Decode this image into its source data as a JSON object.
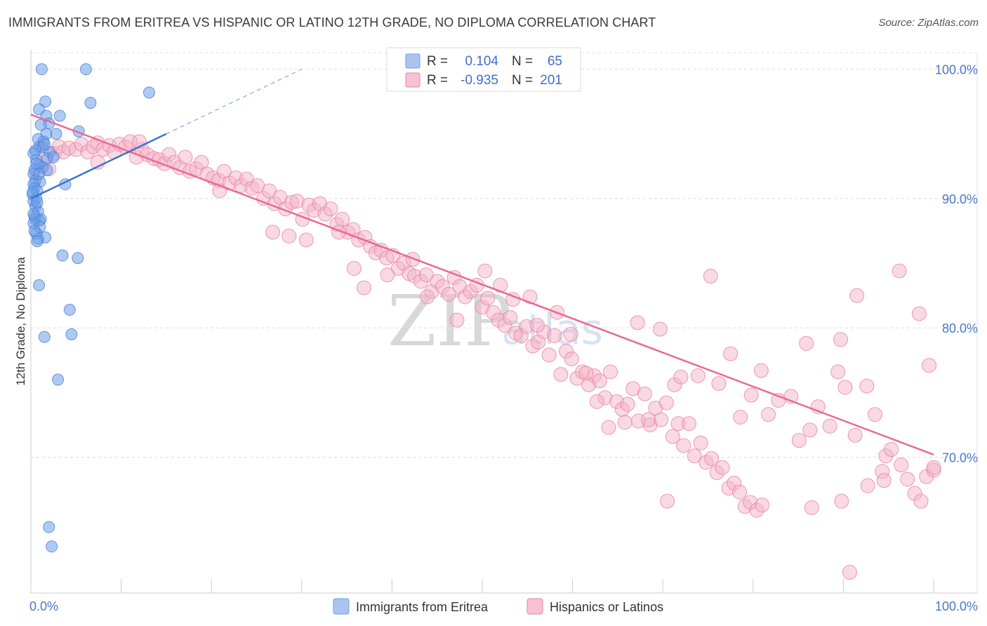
{
  "title": "IMMIGRANTS FROM ERITREA VS HISPANIC OR LATINO 12TH GRADE, NO DIPLOMA CORRELATION CHART",
  "source": "Source: ZipAtlas.com",
  "watermark": {
    "zip": "ZIP",
    "atlas": "atlas"
  },
  "chart_data": {
    "type": "scatter",
    "title": "IMMIGRANTS FROM ERITREA VS HISPANIC OR LATINO 12TH GRADE, NO DIPLOMA CORRELATION CHART",
    "xlabel": "",
    "ylabel": "12th Grade, No Diploma",
    "xlim": [
      0,
      100
    ],
    "ylim": [
      59.5,
      101.5
    ],
    "x_tick_labels": [
      "0.0%",
      "100.0%"
    ],
    "y_ticks": [
      70,
      80,
      90,
      100
    ],
    "y_tick_labels": [
      "70.0%",
      "80.0%",
      "90.0%",
      "100.0%"
    ],
    "grid": true,
    "legend_position": "top-center",
    "legend": [
      {
        "name": "Immigrants from Eritrea",
        "r_label": "R =",
        "r_value": "0.104",
        "n_label": "N =",
        "n_value": "65",
        "color": "#7ea8e8"
      },
      {
        "name": "Hispanics or Latinos",
        "r_label": "R =",
        "r_value": "-0.935",
        "n_label": "N =",
        "n_value": "201",
        "color": "#f0a0bc"
      }
    ],
    "series": [
      {
        "name": "Immigrants from Eritrea",
        "color": "#6e9ee8",
        "stroke": "#4a7fd8",
        "trend": {
          "x": [
            0,
            15
          ],
          "y": [
            90.0,
            95.0
          ],
          "color": "#3a75d0"
        },
        "trend_ext": {
          "x": [
            15,
            30
          ],
          "y": [
            95.0,
            100.0
          ]
        },
        "points": [
          [
            1.2,
            100.0
          ],
          [
            6.1,
            100.0
          ],
          [
            13.1,
            98.2
          ],
          [
            1.6,
            97.5
          ],
          [
            6.6,
            97.4
          ],
          [
            0.9,
            96.9
          ],
          [
            1.7,
            96.4
          ],
          [
            3.2,
            96.4
          ],
          [
            2.0,
            95.8
          ],
          [
            5.3,
            95.2
          ],
          [
            2.8,
            95.0
          ],
          [
            1.7,
            95.0
          ],
          [
            0.8,
            94.6
          ],
          [
            1.4,
            94.4
          ],
          [
            0.9,
            94.0
          ],
          [
            1.3,
            94.0
          ],
          [
            0.5,
            93.7
          ],
          [
            2.1,
            93.6
          ],
          [
            1.8,
            93.1
          ],
          [
            0.6,
            93.0
          ],
          [
            0.9,
            92.6
          ],
          [
            1.3,
            92.4
          ],
          [
            0.4,
            92.2
          ],
          [
            0.3,
            91.9
          ],
          [
            0.5,
            91.4
          ],
          [
            1.0,
            91.3
          ],
          [
            0.3,
            91.1
          ],
          [
            3.8,
            91.1
          ],
          [
            0.4,
            90.8
          ],
          [
            0.7,
            90.6
          ],
          [
            0.2,
            90.3
          ],
          [
            0.6,
            90.0
          ],
          [
            0.3,
            89.8
          ],
          [
            0.5,
            89.4
          ],
          [
            0.8,
            89.0
          ],
          [
            0.4,
            88.6
          ],
          [
            1.1,
            88.4
          ],
          [
            0.5,
            88.4
          ],
          [
            0.9,
            88.3
          ],
          [
            0.3,
            88.1
          ],
          [
            1.0,
            87.8
          ],
          [
            0.6,
            87.3
          ],
          [
            1.6,
            87.0
          ],
          [
            0.8,
            86.9
          ],
          [
            0.7,
            86.7
          ],
          [
            3.5,
            85.6
          ],
          [
            5.2,
            85.4
          ],
          [
            0.9,
            83.3
          ],
          [
            4.3,
            81.4
          ],
          [
            4.5,
            79.5
          ],
          [
            1.5,
            79.3
          ],
          [
            3.0,
            76.0
          ],
          [
            2.0,
            64.6
          ],
          [
            2.3,
            63.1
          ],
          [
            0.3,
            88.8
          ],
          [
            1.5,
            94.2
          ],
          [
            0.6,
            92.7
          ],
          [
            0.2,
            90.5
          ],
          [
            1.8,
            92.2
          ],
          [
            0.4,
            87.5
          ],
          [
            1.1,
            95.7
          ],
          [
            0.7,
            89.7
          ],
          [
            0.3,
            93.5
          ],
          [
            2.5,
            93.2
          ],
          [
            0.9,
            91.9
          ]
        ]
      },
      {
        "name": "Hispanics or Latinos",
        "color": "#f4b3c8",
        "stroke": "#e8829f",
        "trend": {
          "x": [
            0,
            100
          ],
          "y": [
            96.5,
            70.2
          ],
          "color": "#e86a94"
        },
        "points": [
          [
            0.8,
            92.0
          ],
          [
            1.5,
            93.0
          ],
          [
            2.0,
            92.3
          ],
          [
            2.6,
            93.5
          ],
          [
            3.1,
            94.0
          ],
          [
            3.6,
            93.6
          ],
          [
            4.2,
            93.9
          ],
          [
            5.0,
            93.8
          ],
          [
            5.6,
            94.2
          ],
          [
            6.3,
            93.6
          ],
          [
            6.9,
            94.0
          ],
          [
            7.4,
            94.3
          ],
          [
            8.0,
            93.8
          ],
          [
            8.7,
            94.1
          ],
          [
            9.2,
            93.6
          ],
          [
            9.8,
            94.2
          ],
          [
            10.5,
            94.0
          ],
          [
            11.0,
            94.4
          ],
          [
            11.7,
            93.2
          ],
          [
            12.3,
            93.8
          ],
          [
            12.9,
            93.4
          ],
          [
            13.6,
            93.1
          ],
          [
            14.2,
            93.0
          ],
          [
            14.8,
            92.7
          ],
          [
            15.3,
            93.4
          ],
          [
            15.9,
            92.8
          ],
          [
            16.5,
            92.4
          ],
          [
            17.1,
            93.2
          ],
          [
            17.6,
            92.1
          ],
          [
            18.3,
            92.3
          ],
          [
            18.9,
            92.8
          ],
          [
            19.5,
            91.9
          ],
          [
            20.2,
            91.6
          ],
          [
            20.8,
            91.4
          ],
          [
            21.4,
            92.1
          ],
          [
            22.0,
            91.2
          ],
          [
            22.7,
            91.6
          ],
          [
            23.3,
            91.0
          ],
          [
            23.9,
            91.5
          ],
          [
            24.5,
            90.8
          ],
          [
            25.1,
            91.0
          ],
          [
            25.8,
            90.0
          ],
          [
            26.4,
            90.6
          ],
          [
            27.0,
            89.6
          ],
          [
            27.6,
            90.1
          ],
          [
            28.2,
            89.2
          ],
          [
            28.9,
            89.7
          ],
          [
            29.5,
            89.8
          ],
          [
            30.1,
            88.4
          ],
          [
            30.8,
            89.5
          ],
          [
            31.4,
            89.1
          ],
          [
            32.0,
            89.6
          ],
          [
            32.6,
            88.8
          ],
          [
            33.2,
            89.2
          ],
          [
            33.9,
            88.0
          ],
          [
            34.5,
            88.4
          ],
          [
            35.1,
            87.4
          ],
          [
            35.7,
            87.6
          ],
          [
            36.3,
            86.8
          ],
          [
            37.0,
            87.0
          ],
          [
            37.6,
            86.3
          ],
          [
            38.2,
            85.8
          ],
          [
            38.8,
            86.0
          ],
          [
            39.4,
            85.4
          ],
          [
            40.1,
            85.6
          ],
          [
            40.7,
            84.6
          ],
          [
            41.3,
            85.0
          ],
          [
            41.9,
            84.2
          ],
          [
            42.5,
            84.0
          ],
          [
            43.2,
            83.6
          ],
          [
            43.8,
            84.1
          ],
          [
            44.4,
            82.8
          ],
          [
            45.0,
            83.6
          ],
          [
            45.6,
            83.2
          ],
          [
            46.3,
            82.6
          ],
          [
            46.9,
            83.9
          ],
          [
            47.5,
            83.2
          ],
          [
            48.1,
            82.4
          ],
          [
            48.7,
            82.8
          ],
          [
            49.4,
            83.3
          ],
          [
            50.0,
            81.6
          ],
          [
            50.6,
            82.3
          ],
          [
            51.2,
            81.2
          ],
          [
            51.8,
            80.6
          ],
          [
            52.5,
            80.2
          ],
          [
            53.1,
            80.8
          ],
          [
            53.7,
            79.6
          ],
          [
            54.3,
            79.4
          ],
          [
            54.9,
            80.1
          ],
          [
            55.6,
            78.6
          ],
          [
            56.2,
            78.9
          ],
          [
            56.8,
            79.7
          ],
          [
            57.4,
            77.9
          ],
          [
            58.0,
            79.4
          ],
          [
            58.7,
            76.4
          ],
          [
            59.3,
            78.2
          ],
          [
            59.9,
            77.6
          ],
          [
            60.5,
            76.1
          ],
          [
            61.1,
            76.6
          ],
          [
            61.8,
            75.6
          ],
          [
            62.4,
            76.3
          ],
          [
            63.0,
            75.9
          ],
          [
            63.6,
            74.6
          ],
          [
            64.2,
            76.6
          ],
          [
            64.9,
            74.3
          ],
          [
            65.5,
            73.7
          ],
          [
            66.1,
            74.1
          ],
          [
            66.7,
            75.3
          ],
          [
            67.3,
            72.8
          ],
          [
            68.0,
            74.9
          ],
          [
            68.6,
            72.5
          ],
          [
            69.2,
            73.8
          ],
          [
            69.8,
            72.9
          ],
          [
            70.4,
            74.2
          ],
          [
            71.1,
            71.6
          ],
          [
            71.7,
            72.6
          ],
          [
            72.3,
            70.9
          ],
          [
            72.9,
            72.6
          ],
          [
            73.5,
            70.1
          ],
          [
            74.2,
            71.1
          ],
          [
            74.8,
            69.6
          ],
          [
            75.4,
            69.9
          ],
          [
            76.0,
            68.8
          ],
          [
            76.6,
            69.2
          ],
          [
            77.3,
            67.6
          ],
          [
            77.9,
            68.0
          ],
          [
            78.5,
            67.3
          ],
          [
            79.1,
            66.2
          ],
          [
            79.7,
            66.5
          ],
          [
            80.4,
            65.9
          ],
          [
            7.4,
            92.8
          ],
          [
            12.0,
            94.4
          ],
          [
            20.9,
            90.6
          ],
          [
            26.8,
            87.4
          ],
          [
            28.6,
            87.1
          ],
          [
            30.5,
            86.8
          ],
          [
            34.1,
            87.4
          ],
          [
            35.8,
            84.6
          ],
          [
            36.9,
            83.1
          ],
          [
            39.5,
            84.1
          ],
          [
            42.3,
            85.3
          ],
          [
            43.9,
            82.4
          ],
          [
            47.2,
            80.6
          ],
          [
            50.3,
            84.4
          ],
          [
            52.0,
            83.3
          ],
          [
            53.4,
            82.2
          ],
          [
            55.3,
            82.4
          ],
          [
            56.1,
            80.2
          ],
          [
            58.3,
            81.2
          ],
          [
            59.8,
            79.5
          ],
          [
            61.5,
            76.5
          ],
          [
            62.7,
            74.3
          ],
          [
            64.0,
            72.3
          ],
          [
            65.8,
            72.7
          ],
          [
            67.2,
            80.4
          ],
          [
            68.4,
            72.9
          ],
          [
            69.7,
            79.9
          ],
          [
            71.3,
            75.6
          ],
          [
            72.0,
            76.2
          ],
          [
            73.9,
            76.3
          ],
          [
            75.3,
            84.0
          ],
          [
            76.2,
            75.7
          ],
          [
            77.5,
            78.0
          ],
          [
            78.6,
            73.1
          ],
          [
            79.8,
            74.8
          ],
          [
            80.9,
            76.7
          ],
          [
            81.7,
            73.3
          ],
          [
            82.8,
            74.4
          ],
          [
            84.2,
            74.7
          ],
          [
            85.1,
            71.3
          ],
          [
            86.3,
            72.1
          ],
          [
            87.2,
            73.9
          ],
          [
            88.5,
            72.4
          ],
          [
            89.4,
            76.6
          ],
          [
            90.2,
            75.4
          ],
          [
            91.3,
            71.7
          ],
          [
            92.6,
            75.5
          ],
          [
            93.5,
            73.3
          ],
          [
            94.7,
            70.1
          ],
          [
            95.3,
            70.6
          ],
          [
            96.4,
            69.4
          ],
          [
            97.1,
            68.3
          ],
          [
            97.9,
            67.2
          ],
          [
            98.6,
            66.6
          ],
          [
            99.2,
            68.5
          ],
          [
            100.0,
            69.0
          ],
          [
            85.9,
            78.8
          ],
          [
            89.7,
            79.1
          ],
          [
            91.5,
            82.5
          ],
          [
            96.2,
            84.4
          ],
          [
            98.4,
            81.1
          ],
          [
            99.5,
            77.1
          ],
          [
            94.3,
            68.9
          ],
          [
            92.7,
            67.8
          ],
          [
            89.8,
            66.6
          ],
          [
            90.7,
            61.1
          ],
          [
            70.5,
            66.6
          ],
          [
            81.0,
            66.3
          ],
          [
            86.5,
            66.1
          ],
          [
            94.5,
            68.2
          ],
          [
            100.0,
            69.2
          ]
        ]
      }
    ]
  }
}
